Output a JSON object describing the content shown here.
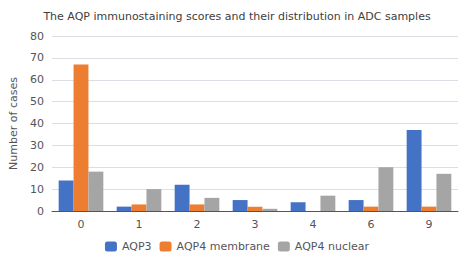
{
  "chart_data": {
    "type": "bar",
    "title": "The AQP immunostaining scores and their distribution in ADC samples",
    "ylabel": "Number of cases",
    "categories": [
      "0",
      "1",
      "2",
      "3",
      "4",
      "6",
      "9"
    ],
    "series": [
      {
        "name": "AQP3",
        "color": "#4472c4",
        "values": [
          14,
          2,
          12,
          5,
          4,
          5,
          37
        ]
      },
      {
        "name": "AQP4 membrane",
        "color": "#ed7d31",
        "values": [
          67,
          3,
          3,
          2,
          0,
          2,
          2
        ]
      },
      {
        "name": "AQP4 nuclear",
        "color": "#a5a5a5",
        "values": [
          18,
          10,
          6,
          1,
          7,
          20,
          17
        ]
      }
    ],
    "ylim": [
      0,
      80
    ],
    "yticks": [
      0,
      10,
      20,
      30,
      40,
      50,
      60,
      70,
      80
    ],
    "grid": true,
    "legend": "bottom"
  }
}
